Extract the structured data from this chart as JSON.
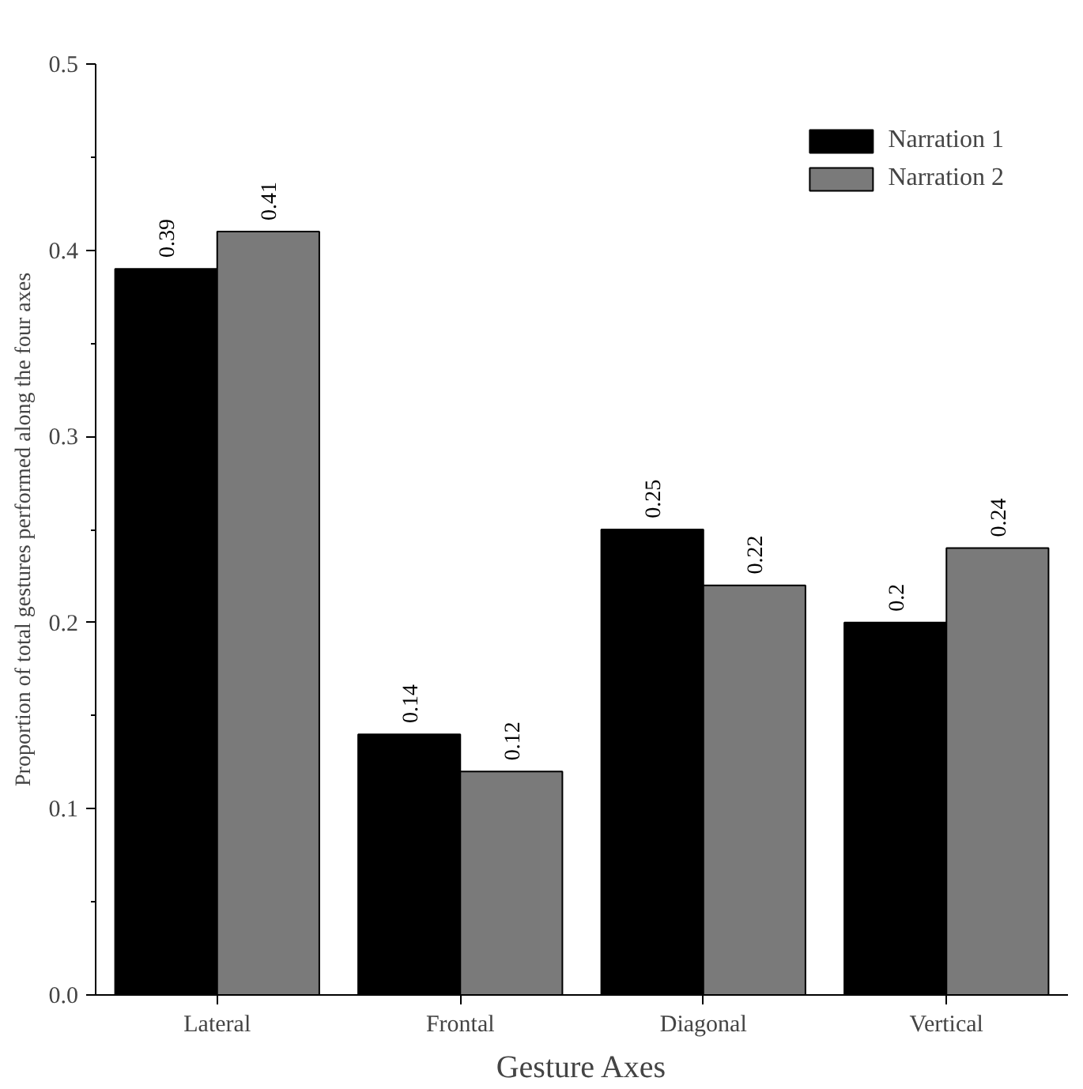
{
  "chart_data": {
    "type": "bar",
    "xlabel": "Gesture Axes",
    "ylabel": "Proportion of total gestures performed along the four axes",
    "categories": [
      "Lateral",
      "Frontal",
      "Diagonal",
      "Vertical"
    ],
    "series": [
      {
        "name": "Narration 1",
        "color": "#000000",
        "values": [
          0.39,
          0.14,
          0.25,
          0.2
        ]
      },
      {
        "name": "Narration 2",
        "color": "#7a7a7a",
        "values": [
          0.41,
          0.12,
          0.22,
          0.24
        ]
      }
    ],
    "ylim": [
      0,
      0.5
    ],
    "yticks": [
      {
        "value": 0,
        "label": "0.0"
      },
      0.1,
      0.2,
      0.3,
      0.4,
      0.5
    ],
    "data_labels": true,
    "legend": "top right",
    "grid": false
  }
}
